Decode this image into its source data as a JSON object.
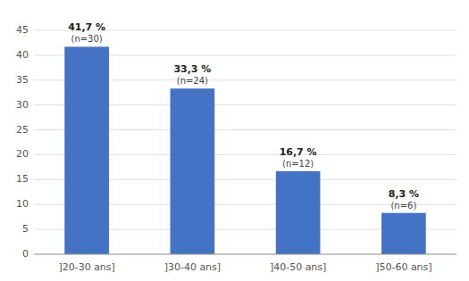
{
  "chart_data": {
    "type": "bar",
    "categories": [
      "]20-30 ans]",
      "]30-40 ans]",
      "]40-50 ans]",
      "]50-60 ans]"
    ],
    "values": [
      41.7,
      33.3,
      16.7,
      8.3
    ],
    "data_labels": true,
    "value_labels": [
      "41,7 %",
      "33,3 %",
      "16,7 %",
      "8,3 %"
    ],
    "annotations": [
      "(n=30)",
      "(n=24)",
      "(n=12)",
      "(n=6)"
    ],
    "color": "#4472C4",
    "ylim": [
      0,
      45
    ],
    "yticks": [
      0,
      5,
      10,
      15,
      20,
      25,
      30,
      35,
      40,
      45
    ],
    "grid": true
  }
}
